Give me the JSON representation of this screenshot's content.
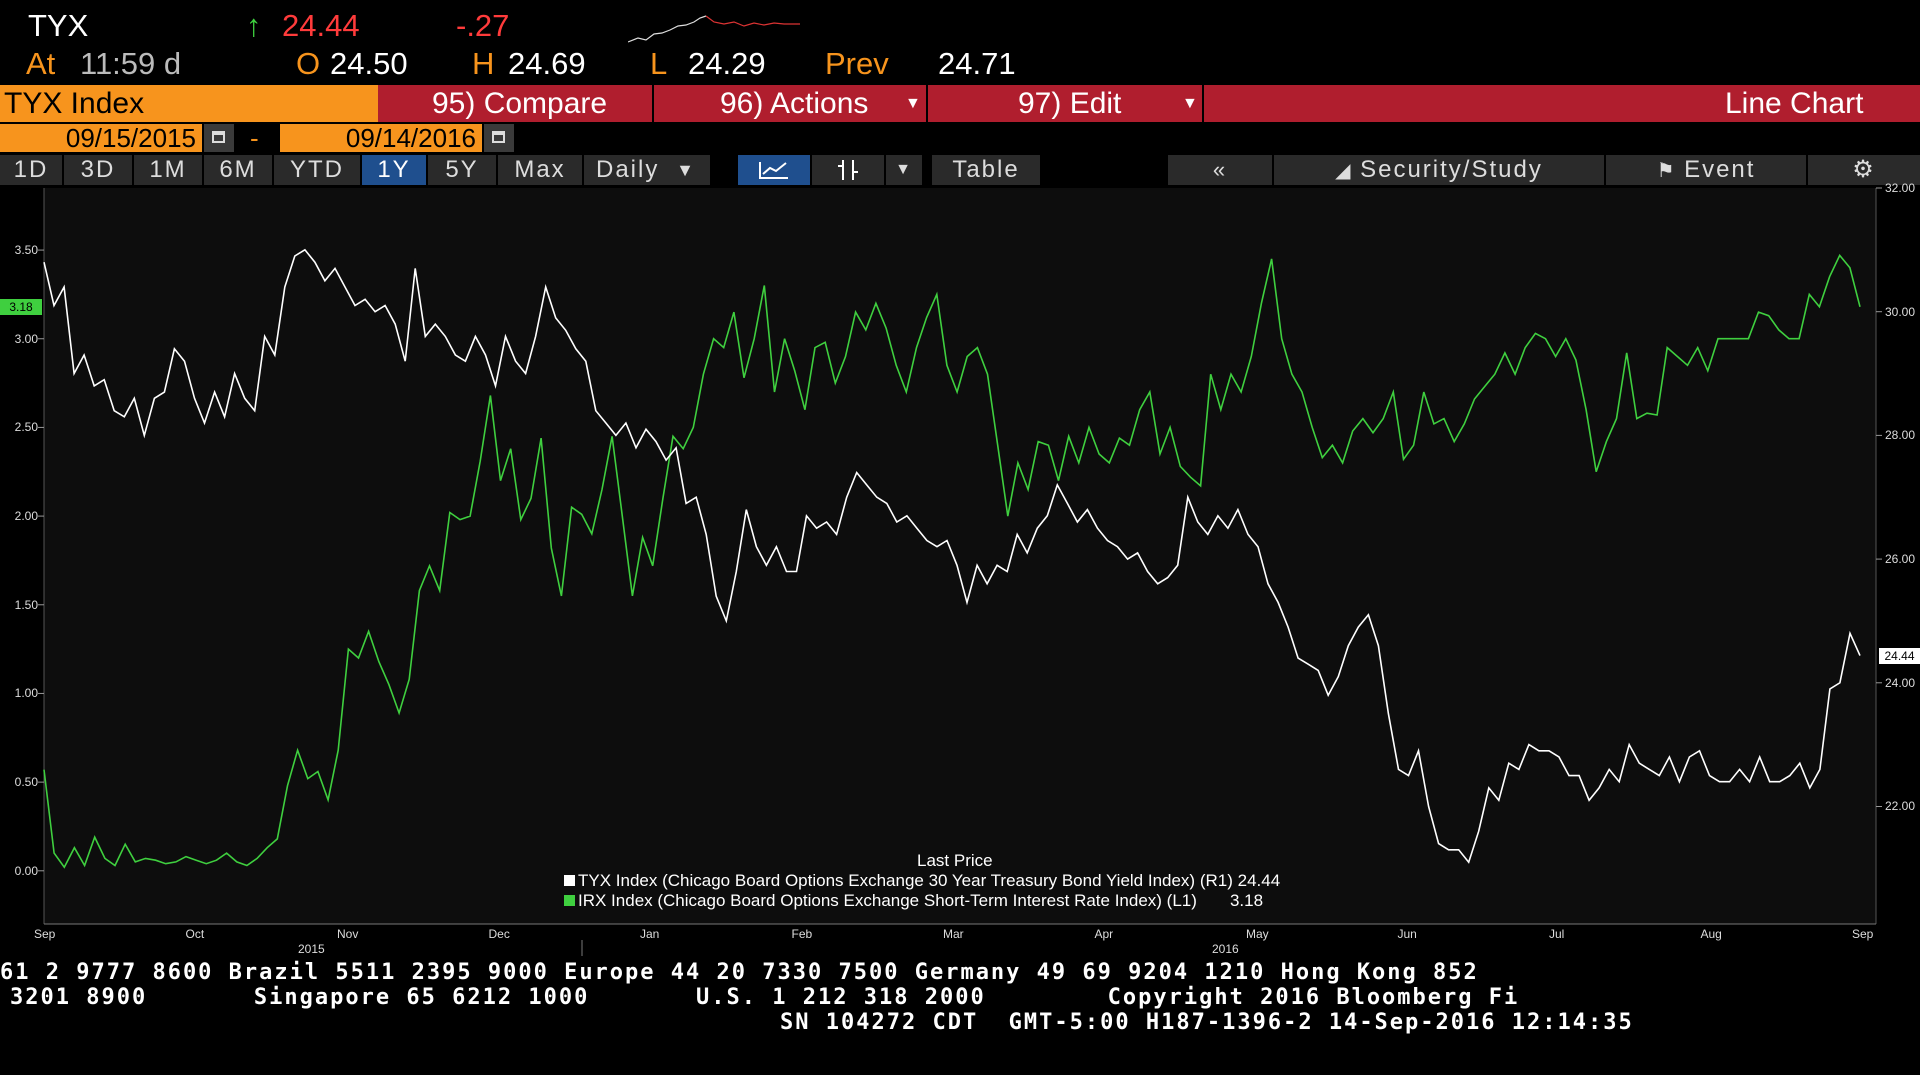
{
  "quote": {
    "ticker": "TYX",
    "arrow": "↑",
    "last": "24.44",
    "change": "-.27",
    "at_label": "At",
    "time": "11:59 d",
    "open_label": "O",
    "open": "24.50",
    "high_label": "H",
    "high": "24.69",
    "low_label": "L",
    "low": "24.29",
    "prev_label": "Prev",
    "prev": "24.71"
  },
  "header": {
    "security": "TYX Index",
    "compare": "95) Compare",
    "actions": "96) Actions",
    "edit": "97) Edit",
    "chart_type": "Line Chart"
  },
  "dates": {
    "start": "09/15/2015",
    "dash": "-",
    "end": "09/14/2016"
  },
  "toolbar": {
    "periods": [
      "1D",
      "3D",
      "1M",
      "6M",
      "YTD",
      "1Y",
      "5Y",
      "Max"
    ],
    "selected_period": "1Y",
    "frequency": "Daily",
    "table": "Table",
    "security_study": "Security/Study",
    "event": "Event"
  },
  "chart_data": {
    "type": "line",
    "x_labels": [
      "Sep",
      "Oct",
      "Nov",
      "Dec",
      "Jan",
      "Feb",
      "Mar",
      "Apr",
      "May",
      "Jun",
      "Jul",
      "Aug",
      "Sep"
    ],
    "year_labels": [
      "2015",
      "2016"
    ],
    "left_axis": {
      "ticks": [
        "3.50",
        "3.00",
        "2.50",
        "2.00",
        "1.50",
        "1.00",
        "0.50",
        "0.00"
      ],
      "ylim": [
        -0.3,
        3.85
      ],
      "last_value": "3.18"
    },
    "right_axis": {
      "ticks": [
        "32.00",
        "30.00",
        "28.00",
        "26.00",
        "24.00",
        "22.00"
      ],
      "ylim": [
        20.1,
        32.0
      ],
      "last_value": "24.44"
    },
    "legend_title": "Last Price",
    "series": [
      {
        "name": "TYX Index (Chicago Board Options Exchange 30 Year Treasury Bond Yield Index)  (R1)",
        "last": "24.44",
        "color": "#ffffff",
        "axis": "right",
        "values": [
          30.8,
          30.1,
          30.4,
          29.0,
          29.3,
          28.8,
          28.9,
          28.4,
          28.3,
          28.6,
          28.0,
          28.6,
          28.7,
          29.4,
          29.2,
          28.6,
          28.2,
          28.7,
          28.3,
          29.0,
          28.6,
          28.4,
          29.6,
          29.3,
          30.4,
          30.9,
          31.0,
          30.8,
          30.5,
          30.7,
          30.4,
          30.1,
          30.2,
          30.0,
          30.1,
          29.8,
          29.2,
          30.7,
          29.6,
          29.8,
          29.6,
          29.3,
          29.2,
          29.6,
          29.3,
          28.8,
          29.6,
          29.2,
          29.0,
          29.6,
          30.4,
          29.9,
          29.7,
          29.4,
          29.2,
          28.4,
          28.2,
          28.0,
          28.2,
          27.8,
          28.1,
          27.9,
          27.6,
          27.8,
          26.9,
          27.0,
          26.4,
          25.4,
          25.0,
          25.8,
          26.8,
          26.2,
          25.9,
          26.2,
          25.8,
          25.8,
          26.7,
          26.5,
          26.6,
          26.4,
          27.0,
          27.4,
          27.2,
          27.0,
          26.9,
          26.6,
          26.7,
          26.5,
          26.3,
          26.2,
          26.3,
          25.9,
          25.3,
          25.9,
          25.6,
          25.9,
          25.8,
          26.4,
          26.1,
          26.5,
          26.7,
          27.2,
          26.9,
          26.6,
          26.8,
          26.5,
          26.3,
          26.2,
          26.0,
          26.1,
          25.8,
          25.6,
          25.7,
          25.9,
          27.0,
          26.6,
          26.4,
          26.7,
          26.5,
          26.8,
          26.4,
          26.2,
          25.6,
          25.3,
          24.9,
          24.4,
          24.3,
          24.2,
          23.8,
          24.1,
          24.6,
          24.9,
          25.1,
          24.6,
          23.5,
          22.6,
          22.5,
          22.9,
          22.0,
          21.4,
          21.3,
          21.3,
          21.1,
          21.6,
          22.3,
          22.1,
          22.7,
          22.6,
          23.0,
          22.9,
          22.9,
          22.8,
          22.5,
          22.5,
          22.1,
          22.3,
          22.6,
          22.4,
          23.0,
          22.7,
          22.6,
          22.5,
          22.8,
          22.4,
          22.8,
          22.9,
          22.5,
          22.4,
          22.4,
          22.6,
          22.4,
          22.8,
          22.4,
          22.4,
          22.5,
          22.7,
          22.3,
          22.6,
          23.9,
          24.0,
          24.8,
          24.44
        ]
      },
      {
        "name": "IRX Index (Chicago Board Options Exchange Short-Term Interest Rate Index)  (L1)",
        "last": "3.18",
        "color": "#3fcf3f",
        "axis": "left",
        "values": [
          0.57,
          0.1,
          0.02,
          0.13,
          0.03,
          0.19,
          0.07,
          0.03,
          0.15,
          0.05,
          0.07,
          0.06,
          0.04,
          0.05,
          0.08,
          0.06,
          0.04,
          0.06,
          0.1,
          0.05,
          0.03,
          0.07,
          0.13,
          0.18,
          0.48,
          0.68,
          0.52,
          0.56,
          0.4,
          0.68,
          1.25,
          1.2,
          1.35,
          1.18,
          1.05,
          0.89,
          1.08,
          1.58,
          1.72,
          1.58,
          2.02,
          1.98,
          2.0,
          2.31,
          2.68,
          2.2,
          2.38,
          1.98,
          2.1,
          2.44,
          1.82,
          1.55,
          2.05,
          2.01,
          1.9,
          2.15,
          2.45,
          2.0,
          1.55,
          1.88,
          1.72,
          2.1,
          2.45,
          2.38,
          2.5,
          2.8,
          3.0,
          2.95,
          3.15,
          2.78,
          3.0,
          3.3,
          2.7,
          3.0,
          2.82,
          2.6,
          2.95,
          2.98,
          2.75,
          2.9,
          3.15,
          3.05,
          3.2,
          3.06,
          2.85,
          2.7,
          2.95,
          3.12,
          3.25,
          2.85,
          2.7,
          2.9,
          2.95,
          2.8,
          2.4,
          2.0,
          2.3,
          2.15,
          2.42,
          2.4,
          2.2,
          2.45,
          2.3,
          2.5,
          2.35,
          2.3,
          2.44,
          2.4,
          2.6,
          2.7,
          2.35,
          2.5,
          2.28,
          2.22,
          2.17,
          2.8,
          2.6,
          2.8,
          2.7,
          2.9,
          3.2,
          3.45,
          3.0,
          2.8,
          2.7,
          2.5,
          2.33,
          2.4,
          2.3,
          2.48,
          2.55,
          2.47,
          2.55,
          2.7,
          2.32,
          2.4,
          2.7,
          2.52,
          2.55,
          2.42,
          2.52,
          2.66,
          2.73,
          2.8,
          2.92,
          2.8,
          2.95,
          3.03,
          3.0,
          2.9,
          3.0,
          2.88,
          2.6,
          2.25,
          2.42,
          2.55,
          2.92,
          2.55,
          2.58,
          2.57,
          2.95,
          2.9,
          2.85,
          2.95,
          2.82,
          3.0,
          3.0,
          3.0,
          3.0,
          3.15,
          3.13,
          3.05,
          3.0,
          3.0,
          3.25,
          3.18,
          3.35,
          3.47,
          3.4,
          3.18
        ]
      }
    ]
  },
  "footer": {
    "line1": "61 2 9777 8600 Brazil 5511 2395 9000 Europe 44 20 7330 7500 Germany 49 69 9204 1210 Hong Kong 852",
    "line2": "3201 8900       Singapore 65 6212 1000       U.S. 1 212 318 2000        Copyright 2016 Bloomberg Fi",
    "line3": "SN 104272 CDT  GMT-5:00 H187-1396-2 14-Sep-2016 12:14:35"
  }
}
